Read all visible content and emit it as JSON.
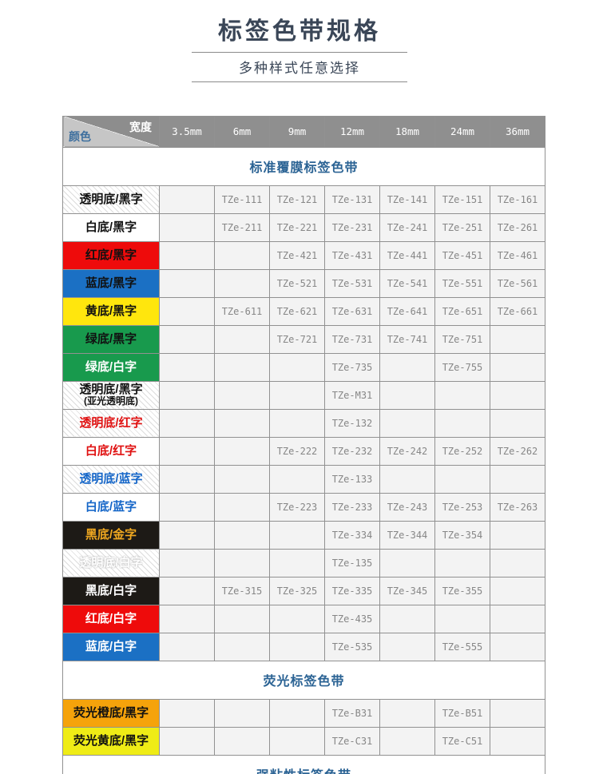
{
  "page": {
    "title": "标签色带规格",
    "subtitle": "多种样式任意选择"
  },
  "colors": {
    "title_text": "#3a4657",
    "rule_line": "#8b8b8b",
    "header_bg": "#8f8f8f",
    "corner_dark": "#8d8d8d",
    "corner_light": "#c6c6c6",
    "corner_color_text": "#3e6f9e",
    "section_title": "#2b6394",
    "cell_bg": "#f3f3f3",
    "grid_border": "#919191",
    "code_text": "#878787"
  },
  "table": {
    "corner": {
      "top_label": "宽度",
      "bottom_label": "颜色"
    },
    "columns": [
      "3.5mm",
      "6mm",
      "9mm",
      "12mm",
      "18mm",
      "24mm",
      "36mm"
    ],
    "sections": [
      {
        "title": "标准覆膜标签色带",
        "rows": [
          {
            "label": "透明底/黑字",
            "bg": "hatch",
            "fg": "#111111",
            "codes": [
              "",
              "TZe-111",
              "TZe-121",
              "TZe-131",
              "TZe-141",
              "TZe-151",
              "TZe-161"
            ]
          },
          {
            "label": "白底/黑字",
            "bg": "#ffffff",
            "fg": "#111111",
            "codes": [
              "",
              "TZe-211",
              "TZe-221",
              "TZe-231",
              "TZe-241",
              "TZe-251",
              "TZe-261"
            ]
          },
          {
            "label": "红底/黑字",
            "bg": "#ee0b0b",
            "fg": "#111111",
            "codes": [
              "",
              "",
              "TZe-421",
              "TZe-431",
              "TZe-441",
              "TZe-451",
              "TZe-461"
            ]
          },
          {
            "label": "蓝底/黑字",
            "bg": "#1b70c4",
            "fg": "#111111",
            "codes": [
              "",
              "",
              "TZe-521",
              "TZe-531",
              "TZe-541",
              "TZe-551",
              "TZe-561"
            ]
          },
          {
            "label": "黄底/黑字",
            "bg": "#ffe60d",
            "fg": "#111111",
            "codes": [
              "",
              "TZe-611",
              "TZe-621",
              "TZe-631",
              "TZe-641",
              "TZe-651",
              "TZe-661"
            ]
          },
          {
            "label": "绿底/黑字",
            "bg": "#189a4d",
            "fg": "#111111",
            "codes": [
              "",
              "",
              "TZe-721",
              "TZe-731",
              "TZe-741",
              "TZe-751",
              ""
            ]
          },
          {
            "label": "绿底/白字",
            "bg": "#189a4d",
            "fg": "#ffffff",
            "codes": [
              "",
              "",
              "",
              "TZe-735",
              "",
              "TZe-755",
              ""
            ]
          },
          {
            "label": "透明底/黑字",
            "sub": "(亚光透明底)",
            "bg": "hatch",
            "fg": "#111111",
            "codes": [
              "",
              "",
              "",
              "TZe-M31",
              "",
              "",
              ""
            ]
          },
          {
            "label": "透明底/红字",
            "bg": "hatch",
            "fg": "#e01111",
            "codes": [
              "",
              "",
              "",
              "TZe-132",
              "",
              "",
              ""
            ]
          },
          {
            "label": "白底/红字",
            "bg": "#ffffff",
            "fg": "#e01111",
            "codes": [
              "",
              "",
              "TZe-222",
              "TZe-232",
              "TZe-242",
              "TZe-252",
              "TZe-262"
            ]
          },
          {
            "label": "透明底/蓝字",
            "bg": "hatch",
            "fg": "#1566c8",
            "codes": [
              "",
              "",
              "",
              "TZe-133",
              "",
              "",
              ""
            ]
          },
          {
            "label": "白底/蓝字",
            "bg": "#ffffff",
            "fg": "#1566c8",
            "codes": [
              "",
              "",
              "TZe-223",
              "TZe-233",
              "TZe-243",
              "TZe-253",
              "TZe-263"
            ]
          },
          {
            "label": "黑底/金字",
            "bg": "#1d1a16",
            "fg": "#f0a820",
            "codes": [
              "",
              "",
              "",
              "TZe-334",
              "TZe-344",
              "TZe-354",
              ""
            ]
          },
          {
            "label": "透明底/白字",
            "bg": "hatch",
            "fg": "#ffffff",
            "outline": true,
            "codes": [
              "",
              "",
              "",
              "TZe-135",
              "",
              "",
              ""
            ]
          },
          {
            "label": "黑底/白字",
            "bg": "#1d1a16",
            "fg": "#ffffff",
            "codes": [
              "",
              "TZe-315",
              "TZe-325",
              "TZe-335",
              "TZe-345",
              "TZe-355",
              ""
            ]
          },
          {
            "label": "红底/白字",
            "bg": "#ee0b0b",
            "fg": "#ffffff",
            "codes": [
              "",
              "",
              "",
              "TZe-435",
              "",
              "",
              ""
            ]
          },
          {
            "label": "蓝底/白字",
            "bg": "#1b70c4",
            "fg": "#ffffff",
            "codes": [
              "",
              "",
              "",
              "TZe-535",
              "",
              "TZe-555",
              ""
            ]
          }
        ]
      },
      {
        "title": "荧光标签色带",
        "rows": [
          {
            "label": "荧光橙底/黑字",
            "bg": "#f5a30b",
            "fg": "#111111",
            "codes": [
              "",
              "",
              "",
              "TZe-B31",
              "",
              "TZe-B51",
              ""
            ]
          },
          {
            "label": "荧光黄底/黑字",
            "bg": "#efec16",
            "fg": "#111111",
            "codes": [
              "",
              "",
              "",
              "TZe-C31",
              "",
              "TZe-C51",
              ""
            ]
          }
        ]
      },
      {
        "title": "强粘性标签色带",
        "rows": []
      }
    ]
  }
}
